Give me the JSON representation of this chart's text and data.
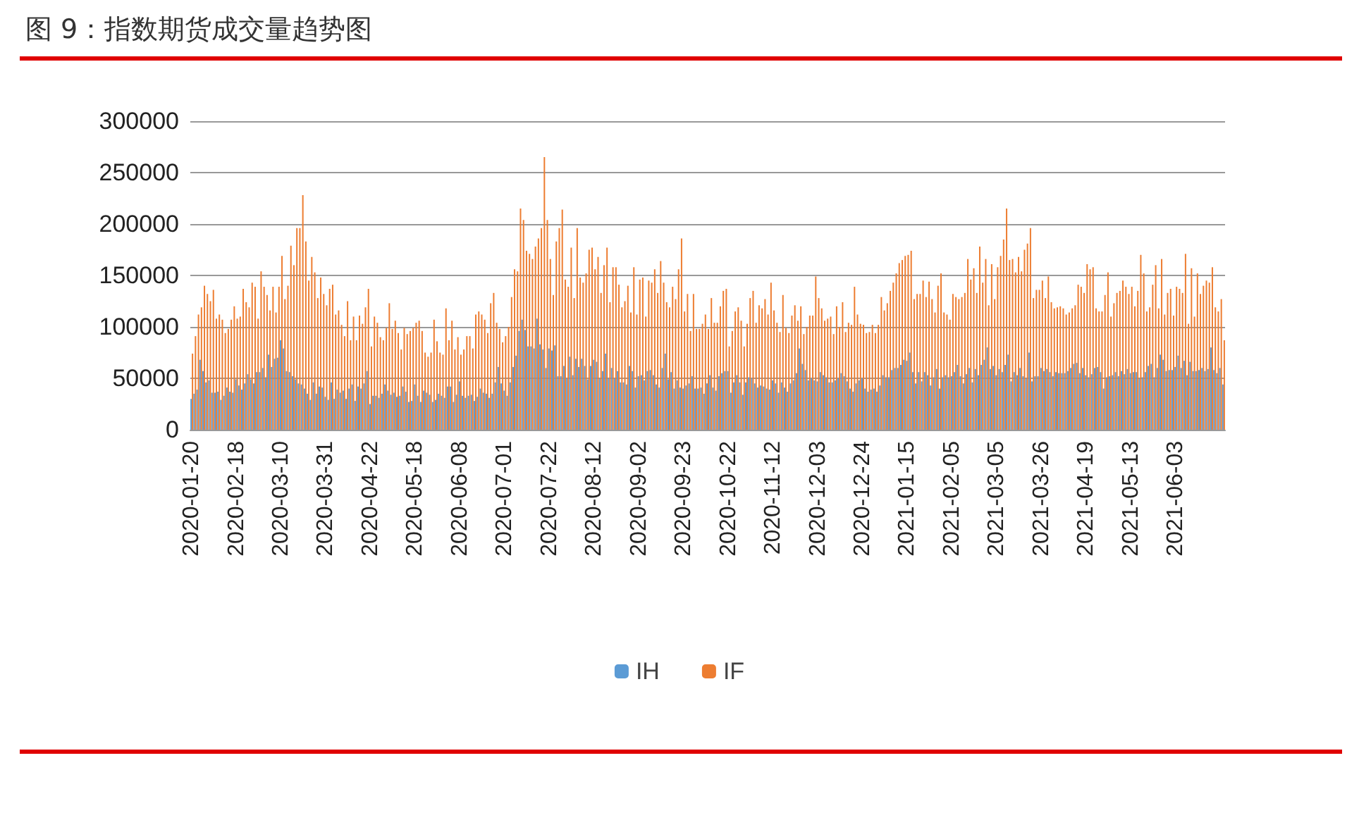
{
  "chart_data": {
    "type": "bar",
    "title": "图 9：指数期货成交量趋势图",
    "categories": [
      "2020-01-20",
      null,
      null,
      null,
      null,
      null,
      null,
      null,
      null,
      null,
      null,
      null,
      null,
      null,
      null,
      "2020-02-18",
      null,
      null,
      null,
      null,
      null,
      null,
      null,
      null,
      null,
      null,
      null,
      null,
      null,
      null,
      "2020-03-10",
      null,
      null,
      null,
      null,
      null,
      null,
      null,
      null,
      null,
      null,
      null,
      null,
      null,
      null,
      "2020-03-31",
      null,
      null,
      null,
      null,
      null,
      null,
      null,
      null,
      null,
      null,
      null,
      null,
      null,
      null,
      "2020-04-22",
      null,
      null,
      null,
      null,
      null,
      null,
      null,
      null,
      null,
      null,
      null,
      null,
      null,
      null,
      "2020-05-18",
      null,
      null,
      null,
      null,
      null,
      null,
      null,
      null,
      null,
      null,
      null,
      null,
      null,
      null,
      "2020-06-08",
      null,
      null,
      null,
      null,
      null,
      null,
      null,
      null,
      null,
      null,
      null,
      null,
      null,
      null,
      "2020-07-01",
      null,
      null,
      null,
      null,
      null,
      null,
      null,
      null,
      null,
      null,
      null,
      null,
      null,
      null,
      "2020-07-22",
      null,
      null,
      null,
      null,
      null,
      null,
      null,
      null,
      null,
      null,
      null,
      null,
      null,
      null,
      "2020-08-12",
      null,
      null,
      null,
      null,
      null,
      null,
      null,
      null,
      null,
      null,
      null,
      null,
      null,
      null,
      "2020-09-02",
      null,
      null,
      null,
      null,
      null,
      null,
      null,
      null,
      null,
      null,
      null,
      null,
      null,
      null,
      "2020-09-23",
      null,
      null,
      null,
      null,
      null,
      null,
      null,
      null,
      null,
      null,
      null,
      null,
      null,
      null,
      "2020-10-22",
      null,
      null,
      null,
      null,
      null,
      null,
      null,
      null,
      null,
      null,
      null,
      null,
      null,
      null,
      "2020-11-12",
      null,
      null,
      null,
      null,
      null,
      null,
      null,
      null,
      null,
      null,
      null,
      null,
      null,
      null,
      "2020-12-03",
      null,
      null,
      null,
      null,
      null,
      null,
      null,
      null,
      null,
      null,
      null,
      null,
      null,
      null,
      "2020-12-24",
      null,
      null,
      null,
      null,
      null,
      null,
      null,
      null,
      null,
      null,
      null,
      null,
      null,
      null,
      "2021-01-15",
      null,
      null,
      null,
      null,
      null,
      null,
      null,
      null,
      null,
      null,
      null,
      null,
      null,
      null,
      "2021-02-05",
      null,
      null,
      null,
      null,
      null,
      null,
      null,
      null,
      null,
      null,
      null,
      null,
      null,
      null,
      "2021-03-05",
      null,
      null,
      null,
      null,
      null,
      null,
      null,
      null,
      null,
      null,
      null,
      null,
      null,
      null,
      "2021-03-26",
      null,
      null,
      null,
      null,
      null,
      null,
      null,
      null,
      null,
      null,
      null,
      null,
      null,
      null,
      "2021-04-19",
      null,
      null,
      null,
      null,
      null,
      null,
      null,
      null,
      null,
      null,
      null,
      null,
      null,
      null,
      "2021-05-13",
      null,
      null,
      null,
      null,
      null,
      null,
      null,
      null,
      null,
      null,
      null,
      null,
      null,
      null,
      "2021-06-03",
      null,
      null,
      null,
      null,
      null,
      null,
      null,
      null,
      null,
      null,
      null,
      null,
      null,
      null,
      null,
      null
    ],
    "series": [
      {
        "name": "IH",
        "color": "#5b9bd5",
        "values": [
          30000,
          35000,
          39000,
          68000,
          57000,
          46000,
          48000,
          36000,
          36000,
          37000,
          29000,
          33000,
          41000,
          37000,
          36000,
          49000,
          43000,
          39000,
          45000,
          54000,
          49000,
          45000,
          56000,
          56000,
          60000,
          51000,
          73000,
          61000,
          69000,
          70000,
          87000,
          79000,
          57000,
          56000,
          52000,
          49000,
          45000,
          44000,
          40000,
          35000,
          29000,
          46000,
          35000,
          42000,
          41000,
          32000,
          29000,
          46000,
          30000,
          39000,
          36000,
          38000,
          30000,
          40000,
          44000,
          28000,
          42000,
          40000,
          45000,
          57000,
          25000,
          33000,
          33000,
          31000,
          35000,
          44000,
          38000,
          34000,
          36000,
          32000,
          33000,
          42000,
          37000,
          27000,
          28000,
          44000,
          33000,
          27000,
          38000,
          36000,
          34000,
          27000,
          29000,
          35000,
          33000,
          31000,
          42000,
          42000,
          27000,
          34000,
          47000,
          33000,
          31000,
          33000,
          34000,
          28000,
          32000,
          40000,
          36000,
          35000,
          31000,
          35000,
          46000,
          61000,
          45000,
          38000,
          33000,
          46000,
          61000,
          72000,
          96000,
          107000,
          97000,
          81000,
          81000,
          79000,
          108000,
          83000,
          78000,
          60000,
          79000,
          77000,
          82000,
          52000,
          52000,
          62000,
          50000,
          71000,
          53000,
          69000,
          61000,
          69000,
          62000,
          49000,
          62000,
          68000,
          66000,
          50000,
          57000,
          74000,
          50000,
          60000,
          50000,
          57000,
          46000,
          46000,
          44000,
          62000,
          57000,
          41000,
          52000,
          53000,
          48000,
          57000,
          58000,
          53000,
          44000,
          41000,
          60000,
          74000,
          49000,
          56000,
          40000,
          48000,
          41000,
          40000,
          43000,
          45000,
          52000,
          40000,
          40000,
          41000,
          35000,
          45000,
          53000,
          41000,
          38000,
          52000,
          55000,
          57000,
          57000,
          36000,
          46000,
          53000,
          46000,
          34000,
          46000,
          51000,
          50000,
          45000,
          41000,
          43000,
          42000,
          40000,
          39000,
          48000,
          45000,
          36000,
          46000,
          41000,
          37000,
          45000,
          48000,
          55000,
          79000,
          64000,
          58000,
          48000,
          50000,
          48000,
          47000,
          56000,
          53000,
          51000,
          46000,
          46000,
          48000,
          50000,
          55000,
          52000,
          47000,
          40000,
          37000,
          45000,
          48000,
          50000,
          40000,
          37000,
          39000,
          40000,
          37000,
          43000,
          53000,
          51000,
          51000,
          58000,
          60000,
          60000,
          63000,
          68000,
          67000,
          75000,
          56000,
          45000,
          56000,
          47000,
          56000,
          53000,
          43000,
          51000,
          59000,
          40000,
          51000,
          53000,
          51000,
          52000,
          56000,
          63000,
          52000,
          45000,
          54000,
          60000,
          46000,
          59000,
          53000,
          63000,
          68000,
          80000,
          59000,
          62000,
          53000,
          59000,
          56000,
          63000,
          73000,
          47000,
          56000,
          53000,
          60000,
          52000,
          50000,
          75000,
          47000,
          52000,
          52000,
          60000,
          57000,
          59000,
          56000,
          52000,
          56000,
          55000,
          55000,
          55000,
          57000,
          60000,
          64000,
          65000,
          55000,
          60000,
          53000,
          51000,
          54000,
          60000,
          61000,
          56000,
          40000,
          51000,
          52000,
          53000,
          56000,
          52000,
          57000,
          54000,
          59000,
          55000,
          56000,
          56000,
          50000,
          51000,
          56000,
          62000,
          64000,
          51000,
          60000,
          73000,
          68000,
          57000,
          58000,
          58000,
          61000,
          72000,
          60000,
          67000,
          53000,
          66000,
          57000,
          57000,
          58000,
          60000,
          57000,
          59000,
          80000,
          58000,
          55000,
          60000,
          44000
        ]
      },
      {
        "name": "IF",
        "color": "#ed7d31",
        "values": [
          74000,
          91000,
          112000,
          119000,
          140000,
          132000,
          125000,
          136000,
          108000,
          112000,
          107000,
          94000,
          98000,
          107000,
          120000,
          108000,
          110000,
          137000,
          124000,
          119000,
          143000,
          139000,
          108000,
          154000,
          139000,
          131000,
          116000,
          139000,
          114000,
          139000,
          169000,
          127000,
          140000,
          179000,
          160000,
          196000,
          196000,
          228000,
          183000,
          145000,
          168000,
          153000,
          128000,
          148000,
          132000,
          121000,
          137000,
          141000,
          112000,
          116000,
          102000,
          91000,
          125000,
          87000,
          110000,
          87000,
          111000,
          103000,
          119000,
          137000,
          81000,
          110000,
          104000,
          90000,
          87000,
          99000,
          123000,
          98000,
          106000,
          94000,
          78000,
          99000,
          93000,
          96000,
          99000,
          104000,
          106000,
          96000,
          75000,
          71000,
          75000,
          107000,
          86000,
          75000,
          73000,
          118000,
          87000,
          106000,
          78000,
          90000,
          73000,
          78000,
          91000,
          91000,
          79000,
          112000,
          115000,
          112000,
          107000,
          94000,
          123000,
          133000,
          104000,
          98000,
          85000,
          91000,
          100000,
          129000,
          156000,
          154000,
          215000,
          204000,
          174000,
          171000,
          166000,
          178000,
          186000,
          196000,
          265000,
          204000,
          166000,
          131000,
          183000,
          196000,
          214000,
          146000,
          139000,
          177000,
          128000,
          196000,
          148000,
          143000,
          152000,
          175000,
          177000,
          156000,
          168000,
          133000,
          160000,
          177000,
          124000,
          158000,
          158000,
          141000,
          119000,
          125000,
          140000,
          114000,
          158000,
          112000,
          146000,
          148000,
          110000,
          145000,
          143000,
          156000,
          133000,
          164000,
          143000,
          124000,
          119000,
          139000,
          127000,
          156000,
          186000,
          115000,
          132000,
          96000,
          132000,
          98000,
          98000,
          103000,
          112000,
          98000,
          128000,
          104000,
          104000,
          120000,
          135000,
          137000,
          81000,
          96000,
          115000,
          119000,
          106000,
          81000,
          103000,
          128000,
          135000,
          104000,
          121000,
          118000,
          127000,
          112000,
          143000,
          116000,
          104000,
          95000,
          131000,
          99000,
          94000,
          111000,
          121000,
          106000,
          120000,
          93000,
          100000,
          111000,
          111000,
          149000,
          128000,
          118000,
          106000,
          108000,
          110000,
          93000,
          120000,
          100000,
          124000,
          95000,
          104000,
          102000,
          139000,
          112000,
          103000,
          102000,
          94000,
          95000,
          102000,
          94000,
          102000,
          129000,
          116000,
          123000,
          135000,
          143000,
          152000,
          162000,
          165000,
          169000,
          170000,
          174000,
          127000,
          132000,
          132000,
          145000,
          129000,
          144000,
          127000,
          114000,
          140000,
          152000,
          114000,
          112000,
          107000,
          132000,
          129000,
          127000,
          129000,
          133000,
          166000,
          146000,
          157000,
          133000,
          178000,
          143000,
          166000,
          121000,
          161000,
          127000,
          158000,
          169000,
          185000,
          215000,
          165000,
          166000,
          153000,
          168000,
          154000,
          175000,
          181000,
          196000,
          128000,
          136000,
          136000,
          145000,
          128000,
          149000,
          124000,
          118000,
          119000,
          120000,
          118000,
          112000,
          114000,
          118000,
          121000,
          141000,
          139000,
          133000,
          161000,
          156000,
          158000,
          118000,
          115000,
          115000,
          131000,
          153000,
          110000,
          123000,
          133000,
          135000,
          145000,
          139000,
          132000,
          139000,
          120000,
          135000,
          170000,
          152000,
          115000,
          119000,
          141000,
          160000,
          118000,
          166000,
          112000,
          133000,
          137000,
          111000,
          139000,
          137000,
          133000,
          171000,
          103000,
          157000,
          110000,
          152000,
          132000,
          140000,
          145000,
          143000,
          158000,
          119000,
          115000,
          127000,
          87000
        ]
      }
    ],
    "ylim": [
      0,
      300000
    ],
    "yticks": [
      0,
      50000,
      100000,
      150000,
      200000,
      250000,
      300000
    ],
    "grid": "y",
    "legend": "bottom"
  }
}
